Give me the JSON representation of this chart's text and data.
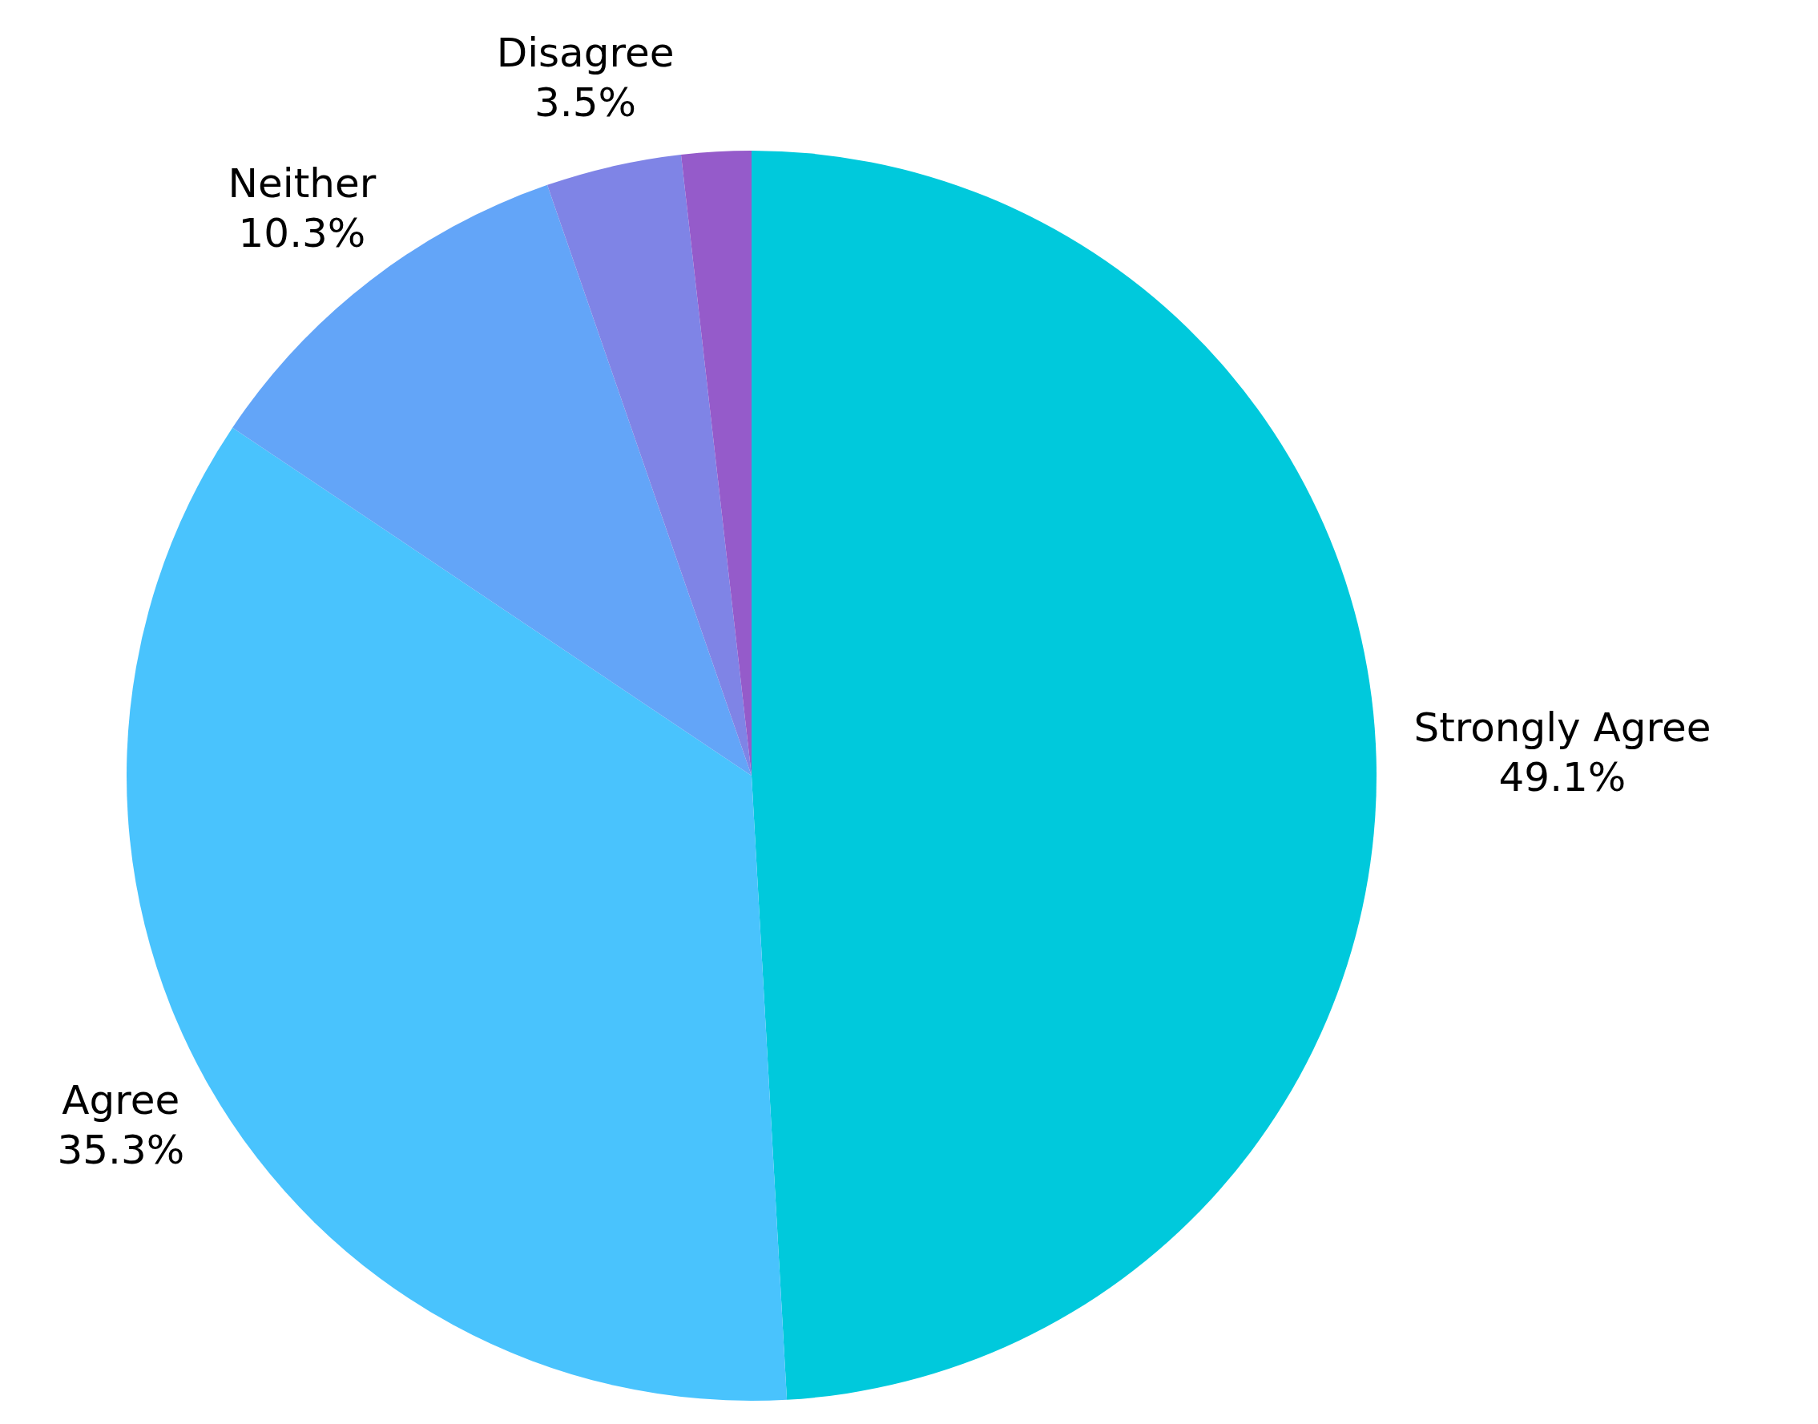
{
  "chart_data": {
    "type": "pie",
    "categories": [
      "Strongly Agree",
      "Agree",
      "Neither",
      "Disagree",
      null
    ],
    "values": [
      49.1,
      35.3,
      10.3,
      3.5,
      1.8
    ],
    "colors": [
      "#00c9dc",
      "#49c3fd",
      "#63a5f8",
      "#7f84e6",
      "#955bca"
    ],
    "value_labels": [
      "49.1%",
      "35.3%",
      "10.3%",
      "3.5%",
      null
    ],
    "legend": false
  }
}
